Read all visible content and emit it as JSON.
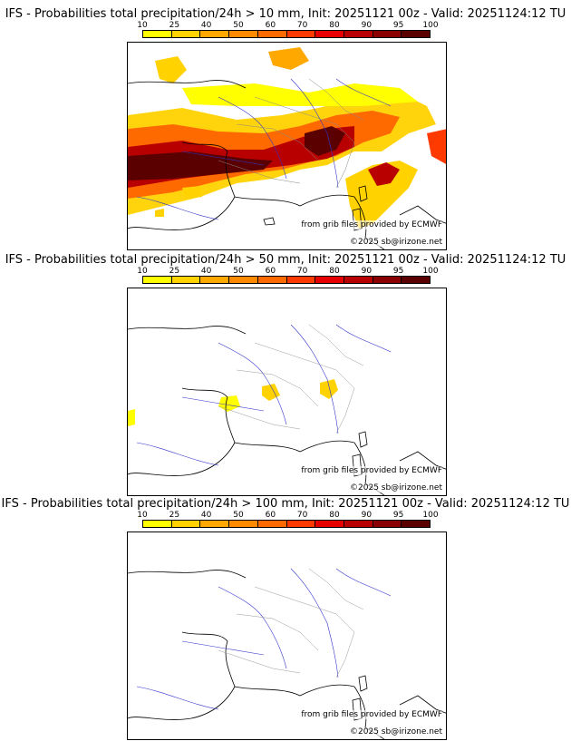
{
  "colorbar": {
    "ticks": [
      "10",
      "25",
      "40",
      "50",
      "60",
      "70",
      "80",
      "90",
      "95",
      "100"
    ],
    "colors": [
      "#ffff00",
      "#ffd200",
      "#ffa800",
      "#ff8a00",
      "#ff6a00",
      "#ff3a00",
      "#e60000",
      "#b80000",
      "#8a0000",
      "#5a0000"
    ]
  },
  "credits": {
    "source": "from grib files provided by ECMWF",
    "copyright": "©2025 sb@irizone.net"
  },
  "panels": [
    {
      "title": "IFS - Probabilities total precipitation/24h > 10 mm, Init: 20251121 00z - Valid: 20251124:12 TU",
      "threshold_mm": 10
    },
    {
      "title": "IFS - Probabilities total precipitation/24h > 50 mm, Init: 20251121 00z - Valid: 20251124:12 TU",
      "threshold_mm": 50
    },
    {
      "title": "IFS - Probabilities total precipitation/24h > 100 mm, Init: 20251121 00z - Valid: 20251124:12 TU",
      "threshold_mm": 100
    }
  ]
}
